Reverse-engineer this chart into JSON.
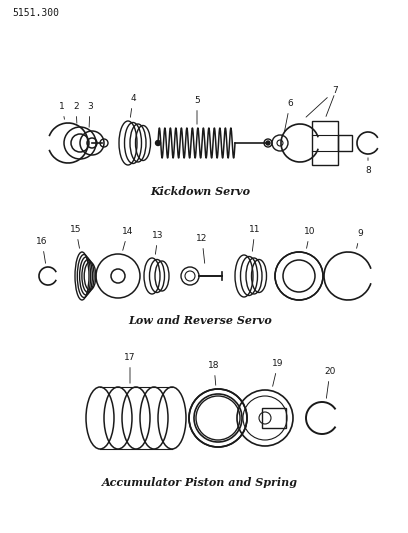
{
  "page_ref": "5151.300",
  "bg_color": "#ffffff",
  "lc": "#1a1a1a",
  "label1": "Kickdown Servo",
  "label2": "Low and Reverse Servo",
  "label3": "Accumulator Piston and Spring",
  "figw": 4.08,
  "figh": 5.33,
  "dpi": 100
}
